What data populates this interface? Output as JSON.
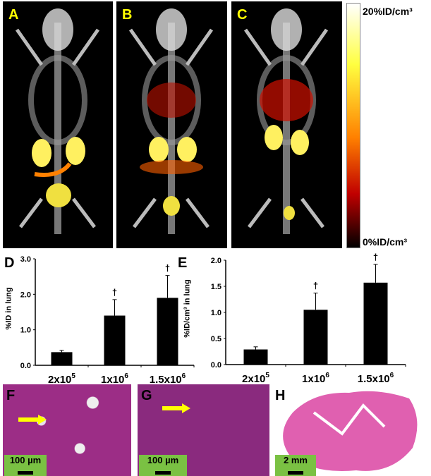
{
  "panels": {
    "A": "A",
    "B": "B",
    "C": "C",
    "D": "D",
    "E": "E",
    "F": "F",
    "G": "G",
    "H": "H"
  },
  "colorbar": {
    "max_label": "20%ID/cm³",
    "min_label": "0%ID/cm³",
    "colors": [
      "#ffffff",
      "#ffff40",
      "#ff8000",
      "#c00000",
      "#000000"
    ]
  },
  "scale_bars": {
    "F": "100 µm",
    "G": "100 µm",
    "H": "2 mm"
  },
  "colors": {
    "bar": "#000000",
    "arrow": "#ffff00",
    "scalebar_bg": "#7ac143",
    "label_yellow": "#ffff00"
  },
  "chart_data": [
    {
      "type": "bar",
      "panel": "D",
      "categories": [
        "2x10^5",
        "1x10^6",
        "1.5x10^6"
      ],
      "category_labels": [
        [
          "2x10",
          "5"
        ],
        [
          "1x10",
          "6"
        ],
        [
          "1.5x10",
          "6"
        ]
      ],
      "values": [
        0.37,
        1.4,
        1.9
      ],
      "errors": [
        0.05,
        0.45,
        0.63
      ],
      "significance": [
        "",
        "†",
        "†"
      ],
      "ylabel": "%ID in lung",
      "ylim": [
        0,
        3.0
      ],
      "yticks": [
        "0.0",
        "1.0",
        "2.0",
        "3.0"
      ],
      "grid": false
    },
    {
      "type": "bar",
      "panel": "E",
      "categories": [
        "2x10^5",
        "1x10^6",
        "1.5x10^6"
      ],
      "category_labels": [
        [
          "2x10",
          "5"
        ],
        [
          "1x10",
          "6"
        ],
        [
          "1.5x10",
          "6"
        ]
      ],
      "values": [
        0.29,
        1.05,
        1.57
      ],
      "errors": [
        0.05,
        0.32,
        0.35
      ],
      "significance": [
        "",
        "†",
        "†"
      ],
      "ylabel": "%ID/cm³ in lung",
      "ylim": [
        0,
        2.0
      ],
      "yticks": [
        "0.0",
        "0.5",
        "1.0",
        "1.5",
        "2.0"
      ],
      "grid": false
    }
  ]
}
